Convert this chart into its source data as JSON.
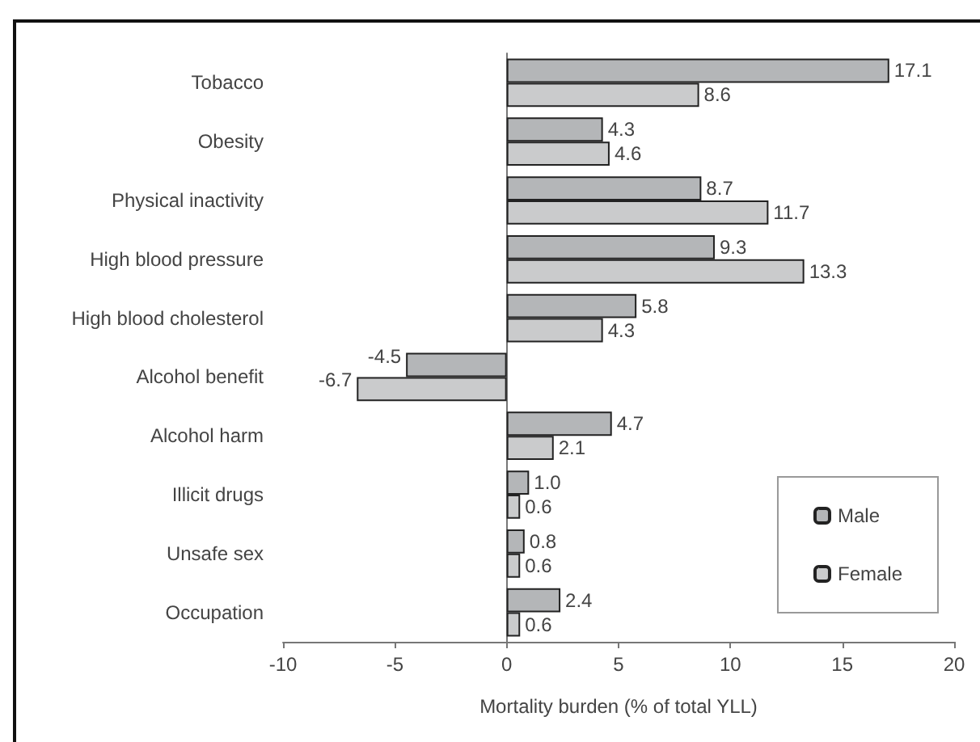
{
  "chart_data": {
    "type": "bar",
    "orientation": "horizontal",
    "xlabel": "Mortality burden (% of total YLL)",
    "categories": [
      "Tobacco",
      "Obesity",
      "Physical inactivity",
      "High blood pressure",
      "High blood cholesterol",
      "Alcohol benefit",
      "Alcohol harm",
      "Illicit drugs",
      "Unsafe sex",
      "Occupation"
    ],
    "series": [
      {
        "name": "Male",
        "color": "#b4b6b8",
        "values": [
          17.1,
          4.3,
          8.7,
          9.3,
          5.8,
          -4.5,
          4.7,
          1.0,
          0.8,
          2.4
        ],
        "value_labels": [
          "17.1",
          "4.3",
          "8.7",
          "9.3",
          "5.8",
          "-4.5",
          "4.7",
          "1.0",
          "0.8",
          "2.4"
        ]
      },
      {
        "name": "Female",
        "color": "#cacbcc",
        "values": [
          8.6,
          4.6,
          11.7,
          13.3,
          4.3,
          -6.7,
          2.1,
          0.6,
          0.6,
          0.6
        ],
        "value_labels": [
          "8.6",
          "4.6",
          "11.7",
          "13.3",
          "4.3",
          "-6.7",
          "2.1",
          "0.6",
          "0.6",
          "0.6"
        ]
      }
    ],
    "xlim": [
      -10,
      20
    ],
    "xticks": [
      -10,
      -5,
      0,
      5,
      10,
      15,
      20
    ],
    "legend": "bottom right"
  }
}
